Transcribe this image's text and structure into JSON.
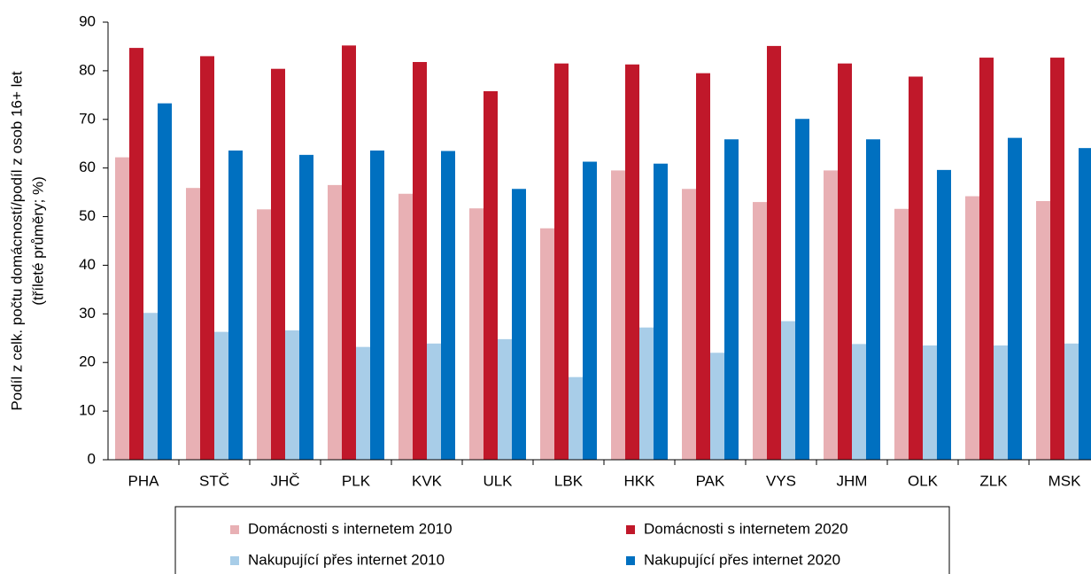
{
  "chart_data": {
    "type": "bar",
    "ylabel": [
      "Podíl z celk. počtu domácností/podíl z osob 16+ let",
      "(tříleté průměry; %)"
    ],
    "categories": [
      "PHA",
      "STČ",
      "JHČ",
      "PLK",
      "KVK",
      "ULK",
      "LBK",
      "HKK",
      "PAK",
      "VYS",
      "JHM",
      "OLK",
      "ZLK",
      "MSK"
    ],
    "series": [
      {
        "name": "Domácnosti s internetem 2010",
        "color": "#e8b0b4",
        "values": [
          62.2,
          55.9,
          51.5,
          56.5,
          54.7,
          51.7,
          47.6,
          59.5,
          55.7,
          53.0,
          59.5,
          51.6,
          54.2,
          53.2
        ]
      },
      {
        "name": "Domácnosti s internetem 2020",
        "color": "#c0182a",
        "values": [
          84.7,
          83.0,
          80.4,
          85.2,
          81.8,
          75.8,
          81.5,
          81.3,
          79.5,
          85.1,
          81.5,
          78.8,
          82.7,
          82.7
        ]
      },
      {
        "name": "Nakupující přes internet 2010",
        "color": "#a8cde8",
        "values": [
          30.2,
          26.3,
          26.6,
          23.2,
          23.9,
          24.8,
          17.0,
          27.2,
          22.0,
          28.5,
          23.8,
          23.5,
          23.5,
          23.9
        ]
      },
      {
        "name": "Nakupující přes internet 2020",
        "color": "#0070c0",
        "values": [
          73.3,
          63.6,
          62.7,
          63.6,
          63.5,
          55.7,
          61.3,
          60.9,
          65.9,
          70.1,
          65.9,
          59.6,
          66.2,
          64.1
        ]
      }
    ],
    "ylim": [
      0,
      90
    ],
    "yticks": [
      0,
      10,
      20,
      30,
      40,
      50,
      60,
      70,
      80,
      90
    ],
    "grid": false,
    "legend": "bottom"
  }
}
